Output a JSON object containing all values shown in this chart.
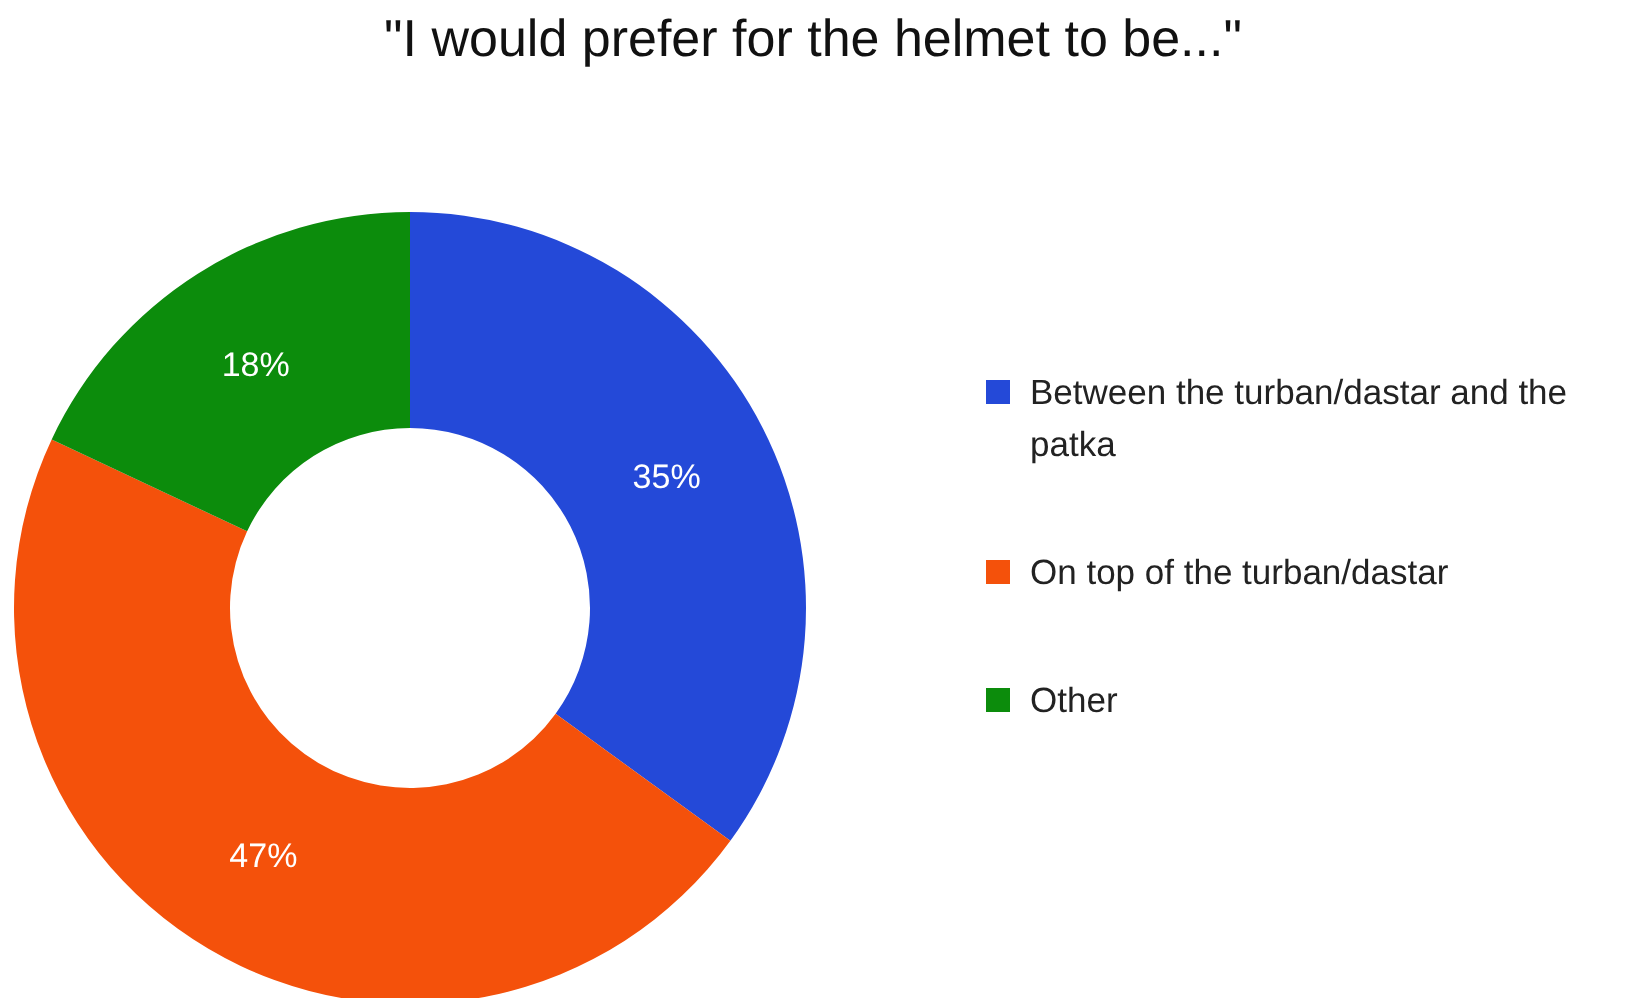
{
  "chart_data": {
    "type": "donut",
    "title": "\"I would prefer for the helmet to be...\"",
    "categories": [
      "Between the turban/dastar and the patka",
      "On top of the turban/dastar",
      "Other"
    ],
    "values": [
      35,
      47,
      18
    ],
    "colors": [
      "#2449d8",
      "#f4510b",
      "#0c8c0c"
    ],
    "value_labels": [
      "35%",
      "47%",
      "18%"
    ],
    "legend": "right"
  }
}
